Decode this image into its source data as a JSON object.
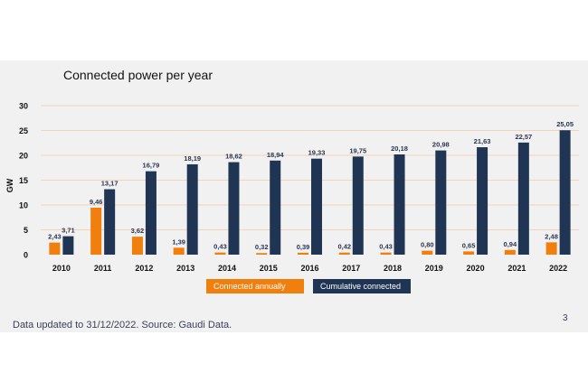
{
  "slide": {
    "title": "Connected power per year",
    "footer": "Data updated to 31/12/2022. Source: Gaudi Data.",
    "page_number": "3"
  },
  "colors": {
    "annual": "#f07f0e",
    "cumulative": "#1f3553",
    "grid": "#f3c9a7",
    "background": "#f1f1f1"
  },
  "chart_data": {
    "type": "bar",
    "title": "Connected power per year",
    "xlabel": "",
    "ylabel": "GW",
    "ylim": [
      0,
      30
    ],
    "yticks": [
      "0",
      "5",
      "10",
      "15",
      "20",
      "25",
      "30"
    ],
    "grid": true,
    "legend_position": "bottom",
    "categories": [
      "2010",
      "2011",
      "2012",
      "2013",
      "2014",
      "2015",
      "2016",
      "2017",
      "2018",
      "2019",
      "2020",
      "2021",
      "2022"
    ],
    "series": [
      {
        "name": "Connected annually",
        "color": "#f07f0e",
        "values": [
          2.43,
          9.46,
          3.62,
          1.39,
          0.43,
          0.32,
          0.39,
          0.42,
          0.43,
          0.8,
          0.65,
          0.94,
          2.48
        ],
        "labels": [
          "2,43",
          "9,46",
          "3,62",
          "1,39",
          "0,43",
          "0,32",
          "0,39",
          "0,42",
          "0,43",
          "0,80",
          "0,65",
          "0,94",
          "2,48"
        ]
      },
      {
        "name": "Cumulative connected",
        "color": "#1f3553",
        "values": [
          3.71,
          13.17,
          16.79,
          18.19,
          18.62,
          18.94,
          19.33,
          19.75,
          20.18,
          20.98,
          21.63,
          22.57,
          25.05
        ],
        "labels": [
          "3,71",
          "13,17",
          "16,79",
          "18,19",
          "18,62",
          "18,94",
          "19,33",
          "19,75",
          "20,18",
          "20,98",
          "21,63",
          "22,57",
          "25,05"
        ]
      }
    ]
  }
}
